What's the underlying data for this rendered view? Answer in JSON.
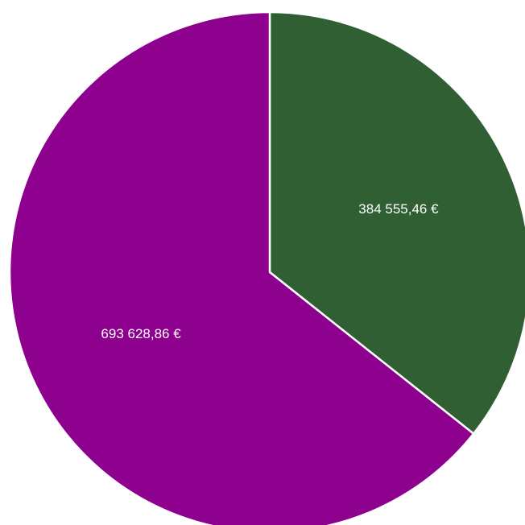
{
  "chart_data": {
    "type": "pie",
    "slices": [
      {
        "value": 384555.46,
        "label": "384 555,46 €",
        "color": "#2f5f32"
      },
      {
        "value": 693628.86,
        "label": "693 628,86 €",
        "color": "#8e008e"
      }
    ],
    "start_angle_deg": 0,
    "direction": "clockwise",
    "slice_border_color": "#ffffff"
  }
}
